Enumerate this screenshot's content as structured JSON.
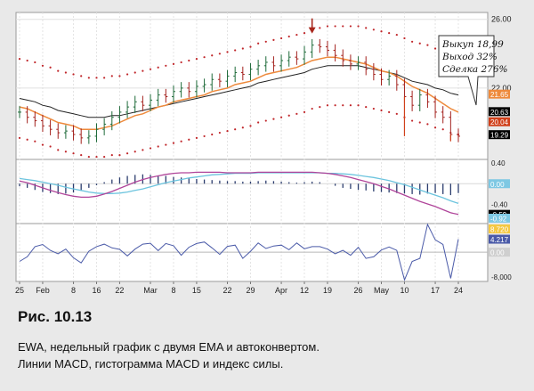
{
  "figure": {
    "title": "Рис. 10.13",
    "caption_lines": [
      "EWA, недельный график с двумя EMA и автоконвертом.",
      "Линии MACD, гистограмма MACD и индекс силы."
    ]
  },
  "chart_data": [
    {
      "type": "candlestick",
      "panel": "price",
      "x_tick_labels": [
        "25",
        "Feb",
        "8",
        "16",
        "22",
        "Mar",
        "8",
        "15",
        "22",
        "29",
        "Apr",
        "12",
        "19",
        "26",
        "May",
        "10",
        "17",
        "24"
      ],
      "y_ticks": [
        22.0,
        26.0
      ],
      "y_tick_labels": [
        "22.00",
        "26.00"
      ],
      "ylim": [
        17.9,
        26.4
      ],
      "value_badges": [
        {
          "text": "21.65",
          "value": 21.65,
          "color": "#ee8a3c"
        },
        {
          "text": "20.63",
          "value": 20.63,
          "color": "#000000"
        },
        {
          "text": "20.04",
          "value": 20.04,
          "color": "#d0401a"
        },
        {
          "text": "19.29",
          "value": 19.29,
          "color": "#000000"
        }
      ],
      "closes": [
        20.6,
        20.3,
        20.1,
        19.8,
        19.6,
        19.4,
        19.5,
        19.3,
        19.1,
        19.2,
        19.6,
        19.9,
        20.3,
        20.6,
        20.9,
        21.2,
        21.0,
        21.3,
        21.6,
        21.5,
        21.8,
        22.0,
        21.8,
        22.1,
        22.2,
        22.5,
        22.4,
        22.7,
        22.9,
        22.8,
        23.1,
        23.3,
        23.5,
        23.3,
        23.6,
        23.8,
        23.7,
        24.1,
        24.5,
        24.4,
        24.2,
        23.9,
        23.6,
        23.4,
        23.5,
        23.1,
        22.8,
        22.5,
        22.7,
        22.2,
        21.5,
        21.0,
        21.6,
        21.2,
        20.6,
        20.3,
        19.3,
        19.2
      ],
      "ema_slow": [
        21.4,
        21.3,
        21.2,
        21.0,
        20.9,
        20.7,
        20.6,
        20.5,
        20.4,
        20.3,
        20.3,
        20.3,
        20.4,
        20.4,
        20.5,
        20.6,
        20.7,
        20.8,
        20.9,
        21.0,
        21.1,
        21.2,
        21.3,
        21.4,
        21.5,
        21.6,
        21.7,
        21.8,
        21.9,
        22.0,
        22.1,
        22.3,
        22.4,
        22.5,
        22.6,
        22.7,
        22.8,
        22.9,
        23.1,
        23.2,
        23.3,
        23.3,
        23.3,
        23.3,
        23.3,
        23.2,
        23.1,
        23.0,
        22.9,
        22.8,
        22.6,
        22.4,
        22.3,
        22.2,
        22.0,
        21.9,
        21.7,
        21.6
      ],
      "ema_fast": [
        20.9,
        20.8,
        20.6,
        20.4,
        20.2,
        20.0,
        19.9,
        19.8,
        19.6,
        19.6,
        19.6,
        19.7,
        19.8,
        20.0,
        20.2,
        20.4,
        20.5,
        20.7,
        20.9,
        21.0,
        21.2,
        21.3,
        21.4,
        21.5,
        21.6,
        21.8,
        21.9,
        22.0,
        22.2,
        22.3,
        22.4,
        22.6,
        22.8,
        22.9,
        23.0,
        23.1,
        23.2,
        23.4,
        23.6,
        23.7,
        23.8,
        23.8,
        23.7,
        23.6,
        23.5,
        23.4,
        23.2,
        23.0,
        22.9,
        22.7,
        22.4,
        22.1,
        21.9,
        21.7,
        21.4,
        21.1,
        20.8,
        20.6
      ],
      "envelope_upper": [
        23.7,
        23.6,
        23.5,
        23.3,
        23.2,
        23.0,
        22.9,
        22.8,
        22.7,
        22.6,
        22.6,
        22.6,
        22.7,
        22.7,
        22.8,
        22.9,
        23.0,
        23.1,
        23.2,
        23.3,
        23.4,
        23.5,
        23.6,
        23.7,
        23.8,
        23.9,
        24.0,
        24.1,
        24.2,
        24.3,
        24.4,
        24.6,
        24.7,
        24.8,
        24.9,
        25.0,
        25.1,
        25.2,
        25.4,
        25.5,
        25.6,
        25.6,
        25.6,
        25.6,
        25.6,
        25.5,
        25.4,
        25.3,
        25.2,
        25.1,
        24.9,
        24.7,
        24.6,
        24.5,
        24.3,
        24.2,
        24.0,
        23.9
      ],
      "envelope_lower": [
        19.1,
        19.0,
        18.9,
        18.7,
        18.6,
        18.4,
        18.3,
        18.2,
        18.1,
        18.0,
        18.0,
        18.0,
        18.1,
        18.1,
        18.2,
        18.3,
        18.4,
        18.5,
        18.6,
        18.7,
        18.8,
        18.9,
        19.0,
        19.1,
        19.2,
        19.3,
        19.4,
        19.5,
        19.6,
        19.7,
        19.8,
        20.0,
        20.1,
        20.2,
        20.3,
        20.4,
        20.5,
        20.6,
        20.8,
        20.9,
        21.0,
        21.0,
        21.0,
        21.0,
        21.0,
        20.9,
        20.8,
        20.7,
        20.6,
        20.5,
        20.3,
        20.1,
        20.0,
        19.9,
        19.7,
        19.6,
        19.4,
        19.3
      ],
      "annotations": [
        {
          "type": "arrow-down",
          "bar_index": 38,
          "color": "#a8261b"
        },
        {
          "type": "note",
          "lines": [
            "Выкуп 18,99",
            "Выход 32%",
            "Сделка 276%"
          ]
        }
      ]
    },
    {
      "type": "histogram+lines",
      "panel": "macd",
      "y_tick_labels": [
        "0.40",
        "0.00",
        "-0.40"
      ],
      "ylim": [
        -0.75,
        0.45
      ],
      "value_badges": [
        {
          "text": "0.00",
          "value": 0.0,
          "color": "#7ec8e3"
        },
        {
          "text": "-0.59",
          "value": -0.59,
          "color": "#000000"
        },
        {
          "text": "-0.92",
          "value": -0.92,
          "color": "#7ec8e3"
        }
      ],
      "histogram": [
        -0.05,
        -0.08,
        -0.12,
        -0.16,
        -0.18,
        -0.2,
        -0.19,
        -0.17,
        -0.13,
        -0.08,
        -0.03,
        0.03,
        0.08,
        0.12,
        0.15,
        0.17,
        0.18,
        0.17,
        0.16,
        0.15,
        0.13,
        0.12,
        0.1,
        0.09,
        0.08,
        0.07,
        0.06,
        0.05,
        0.05,
        0.04,
        0.04,
        0.05,
        0.06,
        0.05,
        0.04,
        0.03,
        0.02,
        0.03,
        0.04,
        0.03,
        0.0,
        -0.04,
        -0.08,
        -0.1,
        -0.12,
        -0.13,
        -0.15,
        -0.16,
        -0.17,
        -0.18,
        -0.19,
        -0.2,
        -0.21,
        -0.19,
        -0.18,
        -0.2,
        -0.22,
        -0.18
      ],
      "macd_line": [
        0.05,
        0.02,
        -0.03,
        -0.08,
        -0.13,
        -0.17,
        -0.21,
        -0.24,
        -0.26,
        -0.26,
        -0.24,
        -0.2,
        -0.15,
        -0.09,
        -0.03,
        0.03,
        0.08,
        0.12,
        0.15,
        0.18,
        0.2,
        0.21,
        0.21,
        0.22,
        0.22,
        0.22,
        0.22,
        0.21,
        0.21,
        0.21,
        0.21,
        0.22,
        0.22,
        0.22,
        0.22,
        0.22,
        0.22,
        0.22,
        0.22,
        0.21,
        0.2,
        0.18,
        0.15,
        0.12,
        0.08,
        0.04,
        0.0,
        -0.05,
        -0.1,
        -0.16,
        -0.22,
        -0.28,
        -0.34,
        -0.39,
        -0.44,
        -0.5,
        -0.56,
        -0.59
      ],
      "signal_line": [
        0.1,
        0.08,
        0.06,
        0.03,
        0.0,
        -0.03,
        -0.07,
        -0.1,
        -0.13,
        -0.16,
        -0.18,
        -0.19,
        -0.19,
        -0.18,
        -0.16,
        -0.13,
        -0.1,
        -0.06,
        -0.02,
        0.02,
        0.05,
        0.08,
        0.11,
        0.13,
        0.15,
        0.17,
        0.18,
        0.19,
        0.2,
        0.2,
        0.2,
        0.21,
        0.21,
        0.21,
        0.21,
        0.21,
        0.21,
        0.21,
        0.21,
        0.21,
        0.2,
        0.2,
        0.19,
        0.18,
        0.16,
        0.14,
        0.12,
        0.09,
        0.06,
        0.02,
        -0.02,
        -0.07,
        -0.12,
        -0.17,
        -0.22,
        -0.27,
        -0.33,
        -0.38
      ]
    },
    {
      "type": "line",
      "panel": "force_index",
      "y_tick_labels": [
        "-8,000"
      ],
      "ylim": [
        -9500,
        9000
      ],
      "value_badges": [
        {
          "text": "8.720",
          "value": 8720,
          "color": "#f5c842"
        },
        {
          "text": "4.217",
          "value": 4217,
          "color": "#4a5aa8"
        },
        {
          "text": "0.00",
          "value": 0,
          "color": "#cfcfcf"
        }
      ],
      "values": [
        -3000,
        -1500,
        1800,
        2500,
        600,
        -500,
        1000,
        -1800,
        -3500,
        300,
        1800,
        2600,
        1400,
        900,
        -1200,
        1000,
        2600,
        2900,
        500,
        2800,
        2100,
        -1000,
        1600,
        2800,
        3300,
        1400,
        -700,
        1900,
        2300,
        -2000,
        300,
        3000,
        1200,
        2000,
        2300,
        800,
        3000,
        1100,
        1800,
        1800,
        1000,
        -500,
        600,
        -1000,
        1600,
        -2000,
        -1500,
        700,
        1700,
        600,
        -9000,
        -3000,
        -2000,
        9000,
        4000,
        2500,
        -8500,
        4217
      ]
    }
  ]
}
